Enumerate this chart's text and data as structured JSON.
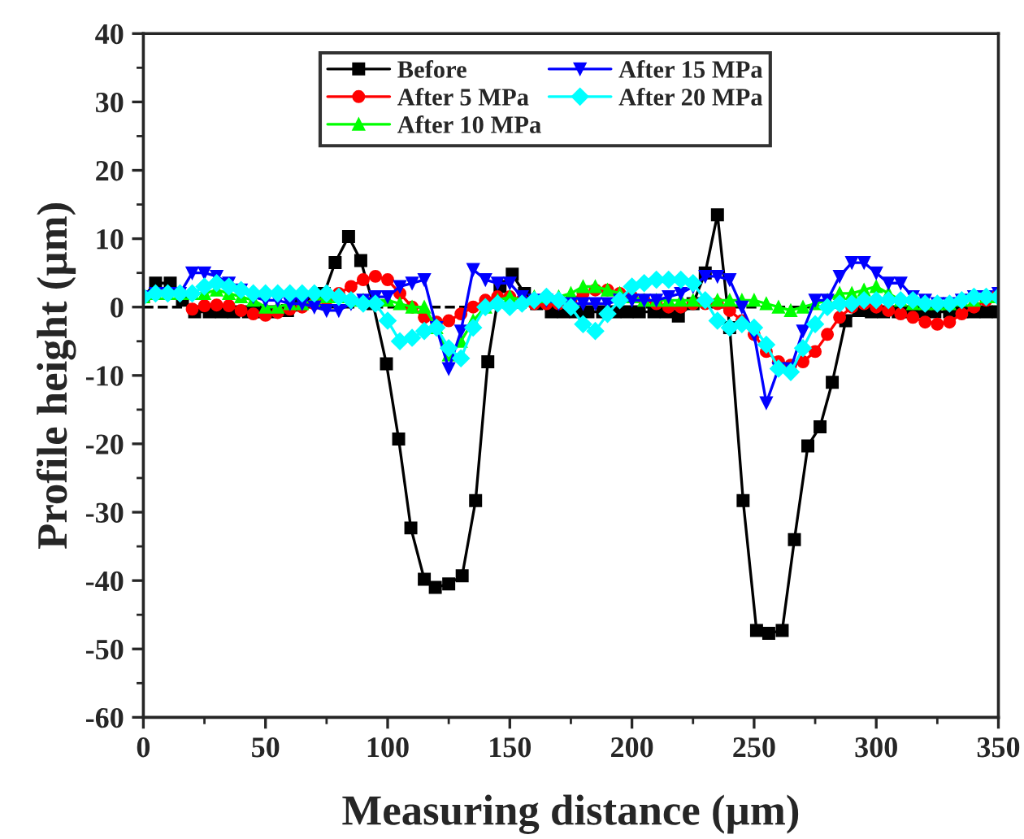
{
  "chart_data": {
    "type": "line",
    "xlabel": "Measuring distance (µm)",
    "ylabel": "Profile height (µm)",
    "xlim": [
      0,
      350
    ],
    "xticks": [
      0,
      50,
      100,
      150,
      200,
      250,
      300,
      350
    ],
    "ylim": [
      -60,
      40
    ],
    "yticks": [
      -60,
      -50,
      -40,
      -30,
      -20,
      -10,
      0,
      10,
      20,
      30,
      40
    ],
    "grid": false,
    "legend": "top",
    "ref_lines": [
      {
        "axis": "y",
        "value": 0,
        "color": "#000000",
        "line_style": "dashed"
      }
    ],
    "series": [
      {
        "name": "Before",
        "color": "#000000",
        "marker": "square",
        "x": [
          0,
          5,
          11,
          16,
          21,
          27,
          32,
          37,
          43,
          48,
          53,
          59,
          64,
          69,
          74,
          78.5,
          84,
          89,
          94,
          99.5,
          104.5,
          109.5,
          115,
          119.5,
          125,
          130.5,
          136,
          141,
          146,
          151,
          156,
          161,
          167,
          172,
          177,
          182,
          188,
          193,
          198,
          203,
          209,
          214,
          219,
          225,
          230,
          235,
          240,
          245.5,
          251,
          256,
          261.5,
          266.5,
          272,
          277,
          282,
          287.5,
          293,
          298,
          303,
          309,
          314,
          319,
          324,
          330,
          335,
          340,
          345,
          350
        ],
        "values": [
          1.5,
          3.5,
          3.5,
          1,
          -0.7,
          -0.7,
          -0.7,
          -0.7,
          -0.7,
          -0.7,
          -0.7,
          -0.5,
          0.3,
          0.8,
          2,
          6.5,
          10.3,
          6.8,
          0.5,
          -8.3,
          -19.3,
          -32.3,
          -39.8,
          -41,
          -40.5,
          -39.3,
          -28.3,
          -8,
          3,
          4.8,
          2,
          0.5,
          -0.7,
          -0.7,
          -0.7,
          -0.7,
          -0.7,
          -0.7,
          -0.7,
          -0.7,
          -0.7,
          -0.7,
          -1.3,
          0.5,
          5,
          13.5,
          -3,
          -28.3,
          -47.3,
          -47.7,
          -47.3,
          -34,
          -20.3,
          -17.5,
          -11,
          -2,
          -0.5,
          -0.7,
          -0.7,
          -0.7,
          -0.7,
          -0.7,
          -0.7,
          -0.7,
          -0.7,
          -0.7,
          -0.7,
          -0.7
        ]
      },
      {
        "name": "After 5 MPa",
        "color": "#ff0000",
        "marker": "circle",
        "values": [
          null,
          null,
          null,
          null,
          -0.3,
          0.2,
          0.3,
          0.2,
          -0.5,
          -1,
          -1.2,
          -0.8,
          -0.3,
          0,
          0.5,
          1,
          2,
          3,
          4,
          4.5,
          4,
          2,
          0,
          -1.5,
          -2.2,
          -2,
          -1,
          0,
          1,
          1.5,
          1.5,
          1,
          0.5,
          0.5,
          0.5,
          1,
          2,
          2.5,
          2.5,
          2,
          1.5,
          1,
          0.5,
          0,
          0,
          0.5,
          0.5,
          0.5,
          -0.5,
          -2,
          -4,
          -6.5,
          -8,
          -8.5,
          -8,
          -6.5,
          -4,
          -1.5,
          0,
          0.5,
          0,
          -0.5,
          -1,
          -1.5,
          -2.2,
          -2.5,
          -2.2,
          -1,
          0,
          1,
          2
        ]
      },
      {
        "name": "After 10 MPa",
        "color": "#00ff00",
        "marker": "triangle",
        "values": [
          1.5,
          2,
          2,
          2,
          2,
          2,
          2.5,
          2,
          1.5,
          1,
          0,
          0,
          0.5,
          0.5,
          1,
          1.5,
          1.5,
          1,
          1,
          1,
          1,
          0.5,
          0,
          0,
          -3,
          -7,
          -5,
          -2,
          0,
          1,
          1.5,
          1,
          1.5,
          1.5,
          1.5,
          2,
          3,
          3,
          2.5,
          2,
          1.5,
          1,
          1,
          1,
          1,
          1,
          1,
          1,
          1,
          1,
          1,
          0.5,
          0,
          -0.5,
          0,
          0.5,
          1,
          2,
          2,
          2.5,
          3,
          2,
          1,
          0.5,
          0.5,
          0.5,
          0.5,
          1,
          1,
          1.5,
          1.5
        ]
      },
      {
        "name": "After 15 MPa",
        "color": "#0000ff",
        "marker": "triangle_down",
        "values": [
          1.5,
          2,
          2,
          2,
          5,
          5,
          4.5,
          3.5,
          2.5,
          1.5,
          1,
          1,
          0.5,
          0.5,
          0,
          -0.5,
          -0.5,
          0.5,
          1,
          1.5,
          1.5,
          3,
          3.5,
          4,
          -3,
          -9,
          -3.5,
          5.5,
          4,
          3.5,
          3.5,
          1.5,
          1,
          1,
          0.5,
          0.5,
          0.5,
          0.5,
          0.5,
          1,
          1,
          1,
          1,
          1.5,
          2,
          3,
          4.5,
          4.5,
          4,
          0,
          -4,
          -14,
          -9,
          -9,
          -3.5,
          1,
          1,
          4.5,
          6.5,
          6.5,
          5,
          3.5,
          3.5,
          1.5,
          1,
          0.5,
          0.5,
          1,
          1.5,
          1.5,
          2
        ]
      },
      {
        "name": "After 20 MPa",
        "color": "#00ffff",
        "marker": "diamond",
        "values": [
          1.5,
          2,
          2,
          2,
          2,
          3,
          3.5,
          3,
          2.5,
          2,
          2,
          2,
          2,
          2,
          2,
          2,
          1.5,
          1,
          0.5,
          0.5,
          -2,
          -5,
          -4.5,
          -3.5,
          -3,
          -6,
          -7.5,
          -3,
          0,
          0.5,
          0,
          0.5,
          1,
          1.5,
          1,
          0,
          -2.5,
          -3.5,
          -1,
          1,
          3,
          3.5,
          4,
          4,
          4,
          3.5,
          1,
          -2,
          -3,
          -2.5,
          -3,
          -5.5,
          -9,
          -9.5,
          -6,
          -2.5,
          0,
          0.5,
          0.5,
          1,
          1,
          1,
          1,
          1,
          0.5,
          0.5,
          0.5,
          1,
          1.5,
          1.5,
          1.5
        ]
      }
    ],
    "x": [
      0,
      5,
      10,
      15,
      20,
      25,
      30,
      35,
      40,
      45,
      50,
      55,
      60,
      65,
      70,
      75,
      80,
      85,
      90,
      95,
      100,
      105,
      110,
      115,
      120,
      125,
      130,
      135,
      140,
      145,
      150,
      155,
      160,
      165,
      170,
      175,
      180,
      185,
      190,
      195,
      200,
      205,
      210,
      215,
      220,
      225,
      230,
      235,
      240,
      245,
      250,
      255,
      260,
      265,
      270,
      275,
      280,
      285,
      290,
      295,
      300,
      305,
      310,
      315,
      320,
      325,
      330,
      335,
      340,
      345,
      350
    ]
  }
}
